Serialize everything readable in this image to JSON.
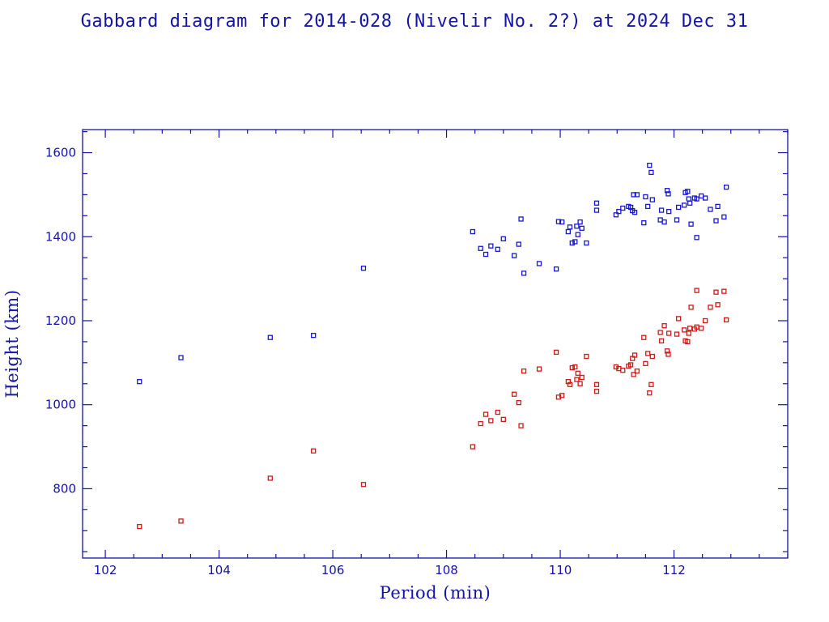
{
  "chart_data": {
    "type": "scatter",
    "title": "Gabbard diagram for 2014-028 (Nivelir No. 2?) at 2024 Dec 31",
    "xlabel": "Period (min)",
    "ylabel": "Height (km)",
    "xlim": [
      101.6,
      114.0
    ],
    "ylim": [
      635,
      1655
    ],
    "xticks": [
      102,
      104,
      106,
      108,
      110,
      112
    ],
    "xticks_minor_step": 0.5,
    "yticks": [
      800,
      1000,
      1200,
      1400,
      1600
    ],
    "yticks_minor_step": 50,
    "grid": false,
    "legend": "none",
    "colors": {
      "axes": "#1414a8",
      "apogee": "#1818d8",
      "perigee": "#d41818"
    },
    "series": [
      {
        "marker": "open-square",
        "color": "#1818d8",
        "points": [
          [
            102.6,
            1055
          ],
          [
            103.33,
            1112
          ],
          [
            104.9,
            1160
          ],
          [
            105.66,
            1165
          ],
          [
            106.54,
            1325
          ],
          [
            108.46,
            1412
          ],
          [
            108.6,
            1372
          ],
          [
            108.69,
            1358
          ],
          [
            108.78,
            1378
          ],
          [
            108.9,
            1370
          ],
          [
            109.0,
            1395
          ],
          [
            109.19,
            1355
          ],
          [
            109.27,
            1382
          ],
          [
            109.31,
            1442
          ],
          [
            109.36,
            1313
          ],
          [
            109.63,
            1336
          ],
          [
            109.93,
            1323
          ],
          [
            109.97,
            1436
          ],
          [
            110.03,
            1435
          ],
          [
            110.14,
            1412
          ],
          [
            110.17,
            1423
          ],
          [
            110.21,
            1385
          ],
          [
            110.26,
            1388
          ],
          [
            110.29,
            1425
          ],
          [
            110.31,
            1405
          ],
          [
            110.35,
            1435
          ],
          [
            110.38,
            1420
          ],
          [
            110.46,
            1385
          ],
          [
            110.64,
            1480
          ],
          [
            110.64,
            1463
          ],
          [
            110.98,
            1452
          ],
          [
            111.03,
            1460
          ],
          [
            111.1,
            1468
          ],
          [
            111.2,
            1472
          ],
          [
            111.24,
            1470
          ],
          [
            111.27,
            1462
          ],
          [
            111.29,
            1500
          ],
          [
            111.31,
            1458
          ],
          [
            111.35,
            1500
          ],
          [
            111.47,
            1433
          ],
          [
            111.5,
            1495
          ],
          [
            111.54,
            1472
          ],
          [
            111.57,
            1570
          ],
          [
            111.6,
            1553
          ],
          [
            111.62,
            1488
          ],
          [
            111.76,
            1440
          ],
          [
            111.78,
            1463
          ],
          [
            111.83,
            1435
          ],
          [
            111.88,
            1510
          ],
          [
            111.9,
            1502
          ],
          [
            111.91,
            1460
          ],
          [
            112.05,
            1440
          ],
          [
            112.08,
            1470
          ],
          [
            112.18,
            1475
          ],
          [
            112.2,
            1505
          ],
          [
            112.24,
            1508
          ],
          [
            112.26,
            1490
          ],
          [
            112.28,
            1480
          ],
          [
            112.3,
            1430
          ],
          [
            112.36,
            1492
          ],
          [
            112.4,
            1398
          ],
          [
            112.4,
            1490
          ],
          [
            112.48,
            1497
          ],
          [
            112.55,
            1492
          ],
          [
            112.64,
            1465
          ],
          [
            112.74,
            1438
          ],
          [
            112.77,
            1472
          ],
          [
            112.88,
            1447
          ],
          [
            112.92,
            1518
          ]
        ]
      },
      {
        "marker": "open-square",
        "color": "#d41818",
        "points": [
          [
            102.6,
            710
          ],
          [
            103.33,
            723
          ],
          [
            104.9,
            825
          ],
          [
            105.66,
            890
          ],
          [
            106.54,
            810
          ],
          [
            108.46,
            900
          ],
          [
            108.6,
            955
          ],
          [
            108.69,
            977
          ],
          [
            108.78,
            962
          ],
          [
            108.9,
            982
          ],
          [
            109.0,
            965
          ],
          [
            109.19,
            1025
          ],
          [
            109.27,
            1005
          ],
          [
            109.31,
            950
          ],
          [
            109.36,
            1080
          ],
          [
            109.63,
            1085
          ],
          [
            109.93,
            1125
          ],
          [
            109.97,
            1018
          ],
          [
            110.03,
            1022
          ],
          [
            110.14,
            1055
          ],
          [
            110.17,
            1048
          ],
          [
            110.21,
            1088
          ],
          [
            110.26,
            1090
          ],
          [
            110.29,
            1060
          ],
          [
            110.31,
            1075
          ],
          [
            110.35,
            1050
          ],
          [
            110.38,
            1065
          ],
          [
            110.46,
            1115
          ],
          [
            110.64,
            1048
          ],
          [
            110.64,
            1032
          ],
          [
            110.98,
            1090
          ],
          [
            111.03,
            1086
          ],
          [
            111.1,
            1082
          ],
          [
            111.2,
            1092
          ],
          [
            111.24,
            1095
          ],
          [
            111.27,
            1110
          ],
          [
            111.29,
            1072
          ],
          [
            111.31,
            1118
          ],
          [
            111.35,
            1080
          ],
          [
            111.47,
            1160
          ],
          [
            111.5,
            1098
          ],
          [
            111.54,
            1122
          ],
          [
            111.57,
            1028
          ],
          [
            111.6,
            1048
          ],
          [
            111.62,
            1115
          ],
          [
            111.76,
            1172
          ],
          [
            111.78,
            1152
          ],
          [
            111.83,
            1188
          ],
          [
            111.88,
            1128
          ],
          [
            111.9,
            1120
          ],
          [
            111.91,
            1170
          ],
          [
            112.05,
            1168
          ],
          [
            112.08,
            1205
          ],
          [
            112.18,
            1178
          ],
          [
            112.2,
            1152
          ],
          [
            112.24,
            1150
          ],
          [
            112.26,
            1170
          ],
          [
            112.28,
            1182
          ],
          [
            112.3,
            1232
          ],
          [
            112.36,
            1180
          ],
          [
            112.4,
            1272
          ],
          [
            112.4,
            1185
          ],
          [
            112.48,
            1182
          ],
          [
            112.55,
            1200
          ],
          [
            112.64,
            1232
          ],
          [
            112.74,
            1268
          ],
          [
            112.77,
            1238
          ],
          [
            112.88,
            1270
          ],
          [
            112.92,
            1202
          ]
        ]
      }
    ]
  }
}
